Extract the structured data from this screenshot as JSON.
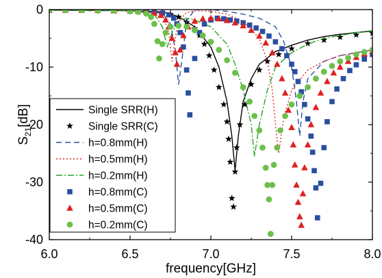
{
  "chart_data": {
    "type": "line",
    "xlabel": "frequency[GHz]",
    "ylabel": {
      "main": "S",
      "sub": "21",
      "unit": "[dB]"
    },
    "xlim": [
      6.0,
      8.0
    ],
    "ylim": [
      -40,
      0
    ],
    "xticks": [
      "6.0",
      "6.5",
      "7.0",
      "7.5",
      "8.0"
    ],
    "yticks": [
      "0",
      "-10",
      "-20",
      "-30",
      "-40"
    ],
    "grid": false,
    "legend_position": "bottom-left",
    "series": [
      {
        "name": "Single SRR(H)",
        "style": "solid",
        "color": "#000000",
        "points": [
          [
            6.0,
            -0.1
          ],
          [
            6.5,
            -0.2
          ],
          [
            6.7,
            -0.4
          ],
          [
            6.8,
            -1.2
          ],
          [
            6.9,
            -3.0
          ],
          [
            7.0,
            -6.5
          ],
          [
            7.05,
            -10
          ],
          [
            7.1,
            -16
          ],
          [
            7.13,
            -22
          ],
          [
            7.15,
            -28
          ],
          [
            7.17,
            -22
          ],
          [
            7.2,
            -16
          ],
          [
            7.25,
            -12
          ],
          [
            7.3,
            -9.5
          ],
          [
            7.4,
            -7.3
          ],
          [
            7.5,
            -6.2
          ],
          [
            7.6,
            -5.3
          ],
          [
            7.7,
            -4.7
          ],
          [
            7.8,
            -4.3
          ],
          [
            7.9,
            -4.0
          ],
          [
            8.0,
            -3.7
          ]
        ]
      },
      {
        "name": "Single SRR(C)",
        "style": "star",
        "color": "#000000",
        "points": [
          [
            6.0,
            -0.1
          ],
          [
            6.2,
            -0.1
          ],
          [
            6.4,
            -0.2
          ],
          [
            6.6,
            -0.3
          ],
          [
            6.7,
            -0.5
          ],
          [
            6.75,
            -0.8
          ],
          [
            6.8,
            -1.3
          ],
          [
            6.85,
            -2.2
          ],
          [
            6.9,
            -3.3
          ],
          [
            6.93,
            -4.5
          ],
          [
            6.96,
            -6.0
          ],
          [
            6.99,
            -8.0
          ],
          [
            7.02,
            -10.5
          ],
          [
            7.05,
            -13.5
          ],
          [
            7.08,
            -16.5
          ],
          [
            7.1,
            -19.5
          ],
          [
            7.11,
            -22.5
          ],
          [
            7.12,
            -26.5
          ],
          [
            7.13,
            -32.8
          ],
          [
            7.14,
            -34.3
          ],
          [
            7.15,
            -28.2
          ],
          [
            7.16,
            -24.0
          ],
          [
            7.18,
            -20.0
          ],
          [
            7.21,
            -16.5
          ],
          [
            7.25,
            -13.0
          ],
          [
            7.3,
            -10.5
          ],
          [
            7.35,
            -9.0
          ],
          [
            7.42,
            -7.8
          ],
          [
            7.5,
            -6.8
          ],
          [
            7.6,
            -5.9
          ],
          [
            7.7,
            -5.3
          ],
          [
            7.8,
            -4.8
          ],
          [
            7.9,
            -4.4
          ],
          [
            8.0,
            -4.1
          ]
        ]
      },
      {
        "name": "h=0.8mm(H)",
        "style": "dash",
        "color": "#2a4fa0",
        "points": [
          [
            6.0,
            -0.1
          ],
          [
            6.5,
            -0.2
          ],
          [
            6.7,
            -0.6
          ],
          [
            6.75,
            -2.5
          ],
          [
            6.78,
            -7
          ],
          [
            6.8,
            -13
          ],
          [
            6.82,
            -9
          ],
          [
            6.85,
            -2
          ],
          [
            6.9,
            0
          ],
          [
            7.0,
            0
          ],
          [
            7.1,
            -0.3
          ],
          [
            7.2,
            -0.8
          ],
          [
            7.3,
            -1.5
          ],
          [
            7.4,
            -3.0
          ],
          [
            7.45,
            -5.5
          ],
          [
            7.5,
            -10
          ],
          [
            7.53,
            -16
          ],
          [
            7.55,
            -22
          ],
          [
            7.57,
            -16
          ],
          [
            7.6,
            -12
          ],
          [
            7.7,
            -9
          ],
          [
            7.8,
            -8
          ],
          [
            7.9,
            -7.5
          ],
          [
            8.0,
            -7.0
          ]
        ]
      },
      {
        "name": "h=0.5mm(H)",
        "style": "dot",
        "color": "#e02020",
        "points": [
          [
            6.0,
            -0.1
          ],
          [
            6.5,
            -0.2
          ],
          [
            6.7,
            -0.8
          ],
          [
            6.74,
            -4
          ],
          [
            6.76,
            -9
          ],
          [
            6.78,
            -5
          ],
          [
            6.8,
            -2
          ],
          [
            6.85,
            -0.5
          ],
          [
            6.9,
            -0.2
          ],
          [
            7.0,
            -0.3
          ],
          [
            7.1,
            -0.8
          ],
          [
            7.2,
            -2.0
          ],
          [
            7.3,
            -5.0
          ],
          [
            7.35,
            -9
          ],
          [
            7.38,
            -14
          ],
          [
            7.4,
            -20
          ],
          [
            7.42,
            -25
          ],
          [
            7.45,
            -19
          ],
          [
            7.5,
            -14
          ],
          [
            7.6,
            -10.5
          ],
          [
            7.7,
            -9
          ],
          [
            7.8,
            -8
          ],
          [
            7.9,
            -7.5
          ],
          [
            8.0,
            -7.0
          ]
        ]
      },
      {
        "name": "h=0.2mm(H)",
        "style": "dashdot",
        "color": "#22a522",
        "points": [
          [
            6.0,
            -0.1
          ],
          [
            6.5,
            -0.2
          ],
          [
            6.65,
            -0.8
          ],
          [
            6.7,
            -3
          ],
          [
            6.73,
            -6.5
          ],
          [
            6.76,
            -4
          ],
          [
            6.8,
            -2
          ],
          [
            6.85,
            -1.5
          ],
          [
            6.9,
            -1.8
          ],
          [
            7.0,
            -3.0
          ],
          [
            7.1,
            -6.0
          ],
          [
            7.15,
            -9.5
          ],
          [
            7.2,
            -14
          ],
          [
            7.25,
            -20
          ],
          [
            7.27,
            -25.5
          ],
          [
            7.3,
            -20
          ],
          [
            7.35,
            -14
          ],
          [
            7.4,
            -10
          ],
          [
            7.5,
            -7.5
          ],
          [
            7.6,
            -6.0
          ],
          [
            7.7,
            -5.0
          ],
          [
            7.8,
            -4.5
          ],
          [
            7.9,
            -4.0
          ],
          [
            8.0,
            -3.8
          ]
        ]
      },
      {
        "name": "h=0.8mm(C)",
        "style": "square",
        "color": "#2a4fa0",
        "points": [
          [
            6.0,
            -0.1
          ],
          [
            6.1,
            -0.1
          ],
          [
            6.2,
            -0.1
          ],
          [
            6.3,
            -0.1
          ],
          [
            6.4,
            -0.1
          ],
          [
            6.5,
            -0.2
          ],
          [
            6.55,
            -0.2
          ],
          [
            6.6,
            -0.3
          ],
          [
            6.65,
            -0.4
          ],
          [
            6.7,
            -0.6
          ],
          [
            6.74,
            -0.9
          ],
          [
            6.77,
            -1.5
          ],
          [
            6.79,
            -2.5
          ],
          [
            6.81,
            -4.0
          ],
          [
            6.83,
            -6.5
          ],
          [
            6.85,
            -10.5
          ],
          [
            6.86,
            -14.5
          ],
          [
            6.87,
            -18.3
          ],
          [
            6.9,
            -8.5
          ],
          [
            6.93,
            -4.0
          ],
          [
            6.96,
            -2.5
          ],
          [
            7.0,
            -1.8
          ],
          [
            7.04,
            -1.5
          ],
          [
            7.08,
            -1.6
          ],
          [
            7.12,
            -1.8
          ],
          [
            7.16,
            -2.0
          ],
          [
            7.2,
            -2.3
          ],
          [
            7.24,
            -2.7
          ],
          [
            7.28,
            -3.2
          ],
          [
            7.32,
            -3.8
          ],
          [
            7.36,
            -4.6
          ],
          [
            7.4,
            -5.6
          ],
          [
            7.44,
            -6.8
          ],
          [
            7.47,
            -8.0
          ],
          [
            7.5,
            -9.5
          ],
          [
            7.52,
            -10.8
          ],
          [
            7.54,
            -12.5
          ],
          [
            7.56,
            -14.3
          ],
          [
            7.58,
            -16.5
          ],
          [
            7.6,
            -19.0
          ],
          [
            7.62,
            -22.0
          ],
          [
            7.63,
            -24.8
          ],
          [
            7.64,
            -28.0
          ],
          [
            7.65,
            -31.0
          ],
          [
            7.66,
            -36.2
          ],
          [
            7.68,
            -30.2
          ],
          [
            7.7,
            -24.0
          ],
          [
            7.72,
            -19.5
          ],
          [
            7.75,
            -16.0
          ],
          [
            7.78,
            -13.8
          ],
          [
            7.82,
            -12.0
          ],
          [
            7.86,
            -10.6
          ],
          [
            7.9,
            -9.6
          ],
          [
            7.95,
            -8.6
          ],
          [
            8.0,
            -7.8
          ]
        ]
      },
      {
        "name": "h=0.5mm(C)",
        "style": "triangle",
        "color": "#e02020",
        "points": [
          [
            6.0,
            -0.1
          ],
          [
            6.1,
            -0.1
          ],
          [
            6.2,
            -0.1
          ],
          [
            6.3,
            -0.1
          ],
          [
            6.4,
            -0.2
          ],
          [
            6.5,
            -0.2
          ],
          [
            6.55,
            -0.3
          ],
          [
            6.6,
            -0.4
          ],
          [
            6.65,
            -0.6
          ],
          [
            6.69,
            -1.0
          ],
          [
            6.72,
            -1.8
          ],
          [
            6.74,
            -3.0
          ],
          [
            6.76,
            -5.0
          ],
          [
            6.78,
            -7.5
          ],
          [
            6.79,
            -9.5
          ],
          [
            6.81,
            -7.0
          ],
          [
            6.83,
            -4.5
          ],
          [
            6.86,
            -3.0
          ],
          [
            6.9,
            -2.0
          ],
          [
            6.95,
            -1.6
          ],
          [
            7.0,
            -1.5
          ],
          [
            7.05,
            -1.6
          ],
          [
            7.1,
            -1.9
          ],
          [
            7.15,
            -2.3
          ],
          [
            7.2,
            -2.8
          ],
          [
            7.25,
            -3.6
          ],
          [
            7.3,
            -4.6
          ],
          [
            7.34,
            -5.8
          ],
          [
            7.38,
            -7.5
          ],
          [
            7.41,
            -9.5
          ],
          [
            7.44,
            -12.0
          ],
          [
            7.46,
            -14.5
          ],
          [
            7.48,
            -17.5
          ],
          [
            7.5,
            -20.5
          ],
          [
            7.51,
            -23.5
          ],
          [
            7.52,
            -27.0
          ],
          [
            7.53,
            -30.5
          ],
          [
            7.54,
            -33.5
          ],
          [
            7.55,
            -36.0
          ],
          [
            7.56,
            -37.5
          ],
          [
            7.57,
            -32.0
          ],
          [
            7.58,
            -27.5
          ],
          [
            7.6,
            -23.5
          ],
          [
            7.62,
            -20.0
          ],
          [
            7.65,
            -17.0
          ],
          [
            7.68,
            -14.5
          ],
          [
            7.72,
            -12.5
          ],
          [
            7.76,
            -11.0
          ],
          [
            7.8,
            -10.0
          ],
          [
            7.85,
            -9.0
          ],
          [
            7.9,
            -8.3
          ],
          [
            7.95,
            -7.7
          ],
          [
            8.0,
            -7.2
          ]
        ]
      },
      {
        "name": "h=0.2mm(C)",
        "style": "circle",
        "color": "#6cc04a",
        "points": [
          [
            6.0,
            -0.1
          ],
          [
            6.1,
            -0.1
          ],
          [
            6.2,
            -0.1
          ],
          [
            6.3,
            -0.2
          ],
          [
            6.4,
            -0.2
          ],
          [
            6.5,
            -0.3
          ],
          [
            6.55,
            -0.4
          ],
          [
            6.6,
            -0.7
          ],
          [
            6.63,
            -1.3
          ],
          [
            6.65,
            -2.5
          ],
          [
            6.67,
            -5.5
          ],
          [
            6.68,
            -8.5
          ],
          [
            6.7,
            -6.0
          ],
          [
            6.72,
            -4.0
          ],
          [
            6.75,
            -3.0
          ],
          [
            6.8,
            -2.8
          ],
          [
            6.85,
            -3.0
          ],
          [
            6.9,
            -3.6
          ],
          [
            6.95,
            -4.5
          ],
          [
            7.0,
            -5.6
          ],
          [
            7.05,
            -7.0
          ],
          [
            7.1,
            -8.8
          ],
          [
            7.15,
            -11.0
          ],
          [
            7.2,
            -13.5
          ],
          [
            7.24,
            -16.0
          ],
          [
            7.27,
            -18.5
          ],
          [
            7.3,
            -21.0
          ],
          [
            7.32,
            -24.0
          ],
          [
            7.34,
            -27.5
          ],
          [
            7.35,
            -30.5
          ],
          [
            7.36,
            -33.0
          ],
          [
            7.37,
            -39.0
          ],
          [
            7.38,
            -30.5
          ],
          [
            7.39,
            -27.0
          ],
          [
            7.41,
            -24.0
          ],
          [
            7.43,
            -21.0
          ],
          [
            7.46,
            -18.5
          ],
          [
            7.5,
            -16.5
          ],
          [
            7.55,
            -15.0
          ],
          [
            7.6,
            -13.5
          ],
          [
            7.65,
            -12.0
          ],
          [
            7.7,
            -10.8
          ],
          [
            7.75,
            -9.8
          ],
          [
            7.8,
            -9.0
          ],
          [
            7.85,
            -8.4
          ],
          [
            7.9,
            -7.8
          ],
          [
            7.95,
            -7.4
          ],
          [
            8.0,
            -7.0
          ]
        ]
      }
    ]
  }
}
